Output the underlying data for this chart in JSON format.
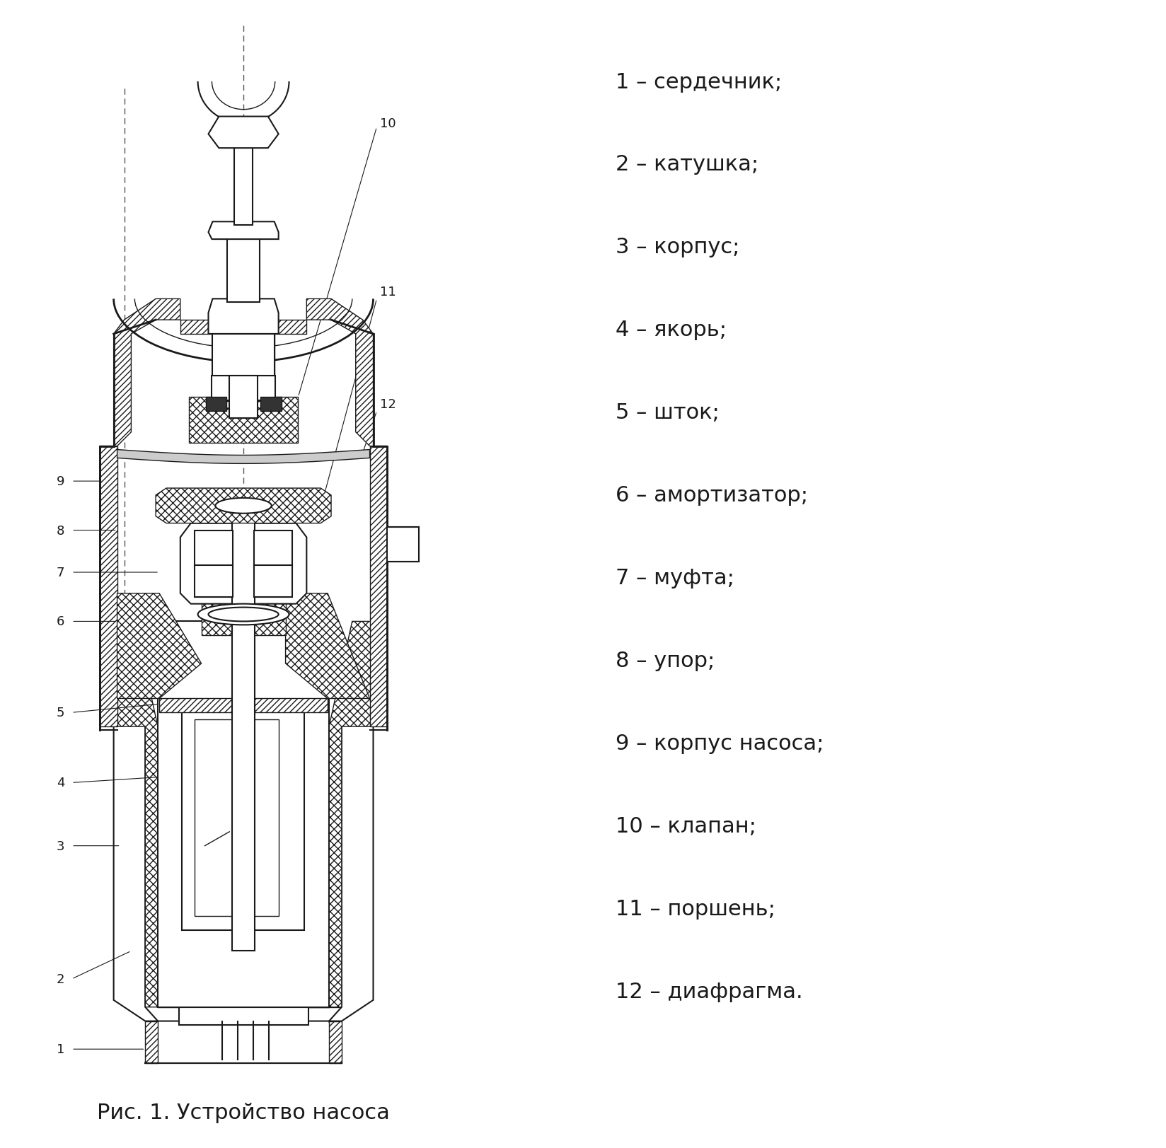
{
  "title": "Рис. 1. Устройство насоса",
  "legend_items": [
    "1 – сердечник;",
    "2 – катушка;",
    "3 – корпус;",
    "4 – якорь;",
    "5 – шток;",
    "6 – амортизатор;",
    "7 – муфта;",
    "8 – упор;",
    "9 – корпус насоса;",
    "10 – клапан;",
    "11 – поршень;",
    "12 – диафрагма."
  ],
  "bg_color": "#ffffff",
  "line_color": "#1a1a1a"
}
